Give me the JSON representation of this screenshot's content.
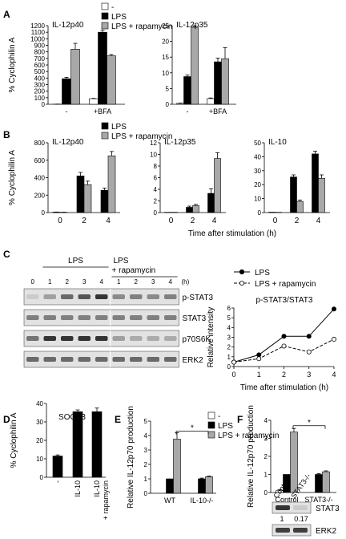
{
  "colors": {
    "ctrl": "#ffffff",
    "lps": "#000000",
    "rapa": "#a8a8a8"
  },
  "panel_labels": [
    "A",
    "B",
    "C",
    "D",
    "E",
    "F"
  ],
  "legend_labels": {
    "ctrl": "-",
    "lps": "LPS",
    "rapa": "LPS + rapamycin"
  },
  "chart_data": [
    {
      "panel": "A",
      "type": "bar",
      "title": "IL-12p40",
      "ylabel": "% Cyclophilin A",
      "ylim": [
        0,
        1200
      ],
      "yticks": [
        0,
        100,
        200,
        300,
        400,
        500,
        600,
        700,
        800,
        900,
        1000,
        1100,
        1200
      ],
      "group_labels": [
        "-",
        "+BFA"
      ],
      "series": [
        {
          "name": "-",
          "values": [
            2,
            85
          ]
        },
        {
          "name": "LPS",
          "values": [
            390,
            1100
          ]
        },
        {
          "name": "LPS + rapamycin",
          "values": [
            840,
            740
          ]
        }
      ],
      "errors": [
        [
          1,
          5
        ],
        [
          20,
          30
        ],
        [
          90,
          20
        ]
      ]
    },
    {
      "panel": "A",
      "type": "bar",
      "title": "IL-12p35",
      "ylabel": "",
      "ylim": [
        0,
        25
      ],
      "yticks": [
        0,
        5,
        10,
        15,
        20,
        25
      ],
      "group_labels": [
        "-",
        "+BFA"
      ],
      "series": [
        {
          "name": "-",
          "values": [
            0.3,
            1.8
          ]
        },
        {
          "name": "LPS",
          "values": [
            8.8,
            13.5
          ]
        },
        {
          "name": "LPS + rapamycin",
          "values": [
            24.5,
            14.5
          ]
        }
      ],
      "errors": [
        [
          0.1,
          0.2
        ],
        [
          0.5,
          1.2
        ],
        [
          0.5,
          3.5
        ]
      ]
    },
    {
      "panel": "B",
      "type": "bar",
      "title": "IL-12p40",
      "ylabel": "% Cyclophilin A",
      "ylim": [
        0,
        800
      ],
      "yticks": [
        0,
        200,
        400,
        600,
        800
      ],
      "xlabel": "Time after stimulation (h)",
      "x": [
        "0",
        "2",
        "4"
      ],
      "series": [
        {
          "name": "LPS",
          "values": [
            5,
            420,
            255
          ]
        },
        {
          "name": "LPS + rapamycin",
          "values": [
            3,
            320,
            650
          ]
        }
      ],
      "errors": [
        [
          1,
          40,
          25
        ],
        [
          1,
          40,
          50
        ]
      ]
    },
    {
      "panel": "B",
      "type": "bar",
      "title": "IL-12p35",
      "ylabel": "",
      "ylim": [
        0,
        12
      ],
      "yticks": [
        0,
        2,
        4,
        6,
        8,
        10,
        12
      ],
      "xlabel": "Time after stimulation (h)",
      "x": [
        "0",
        "2",
        "4"
      ],
      "series": [
        {
          "name": "LPS",
          "values": [
            0.05,
            0.9,
            3.3
          ]
        },
        {
          "name": "LPS + rapamycin",
          "values": [
            0.05,
            1.2,
            9.3
          ]
        }
      ],
      "errors": [
        [
          0,
          0.2,
          0.8
        ],
        [
          0,
          0.2,
          1.0
        ]
      ]
    },
    {
      "panel": "B",
      "type": "bar",
      "title": "IL-10",
      "ylabel": "",
      "ylim": [
        0,
        50
      ],
      "yticks": [
        0,
        10,
        20,
        30,
        40,
        50
      ],
      "xlabel": "Time after stimulation (h)",
      "x": [
        "0",
        "2",
        "4"
      ],
      "series": [
        {
          "name": "LPS",
          "values": [
            0.3,
            25.5,
            42
          ]
        },
        {
          "name": "LPS + rapamycin",
          "values": [
            0.2,
            8,
            24.5
          ]
        }
      ],
      "errors": [
        [
          0,
          1.5,
          2
        ],
        [
          0,
          1,
          2.5
        ]
      ]
    },
    {
      "panel": "C",
      "type": "line",
      "title": "p-STAT3/STAT3",
      "xlabel": "Time after stimulation (h)",
      "ylabel": "Relative intensity",
      "x": [
        0,
        1,
        2,
        3,
        4
      ],
      "xlim": [
        0,
        4
      ],
      "ylim": [
        0,
        6
      ],
      "yticks": [
        0,
        1,
        2,
        3,
        4,
        5,
        6
      ],
      "legend_position": "top-right",
      "series": [
        {
          "name": "LPS",
          "values": [
            0.45,
            1.2,
            3.1,
            3.1,
            5.9
          ]
        },
        {
          "name": "LPS + rapamycin",
          "values": [
            0.45,
            0.8,
            2.1,
            1.5,
            2.8
          ]
        }
      ]
    },
    {
      "panel": "D",
      "type": "bar",
      "title": "SOCS3",
      "ylabel": "% Cyclophilin A",
      "ylim": [
        0,
        40
      ],
      "yticks": [
        0,
        10,
        20,
        30,
        40
      ],
      "categories": [
        "-",
        "IL-10",
        "IL-10\n+ rapamycin"
      ],
      "values": [
        11.5,
        35.5,
        35.5
      ],
      "errors": [
        0.6,
        1.0,
        2.0
      ]
    },
    {
      "panel": "E",
      "type": "bar",
      "title": "",
      "ylabel": "Relative IL-12p70 production",
      "ylim": [
        0,
        5
      ],
      "yticks": [
        0,
        1,
        2,
        3,
        4,
        5
      ],
      "group_labels": [
        "WT",
        "IL-10-/-"
      ],
      "series": [
        {
          "name": "-",
          "values": [
            0,
            0
          ]
        },
        {
          "name": "LPS",
          "values": [
            1,
            1
          ]
        },
        {
          "name": "LPS + rapamycin",
          "values": [
            3.75,
            1.15
          ]
        }
      ],
      "errors": [
        [
          0,
          0
        ],
        [
          0,
          0.05
        ],
        [
          0.45,
          0.05
        ]
      ],
      "significance": "*"
    },
    {
      "panel": "F",
      "type": "bar",
      "title": "",
      "ylabel": "Relative IL-12p70 production",
      "ylim": [
        0,
        4
      ],
      "yticks": [
        0,
        1,
        2,
        3,
        4
      ],
      "group_labels": [
        "Control",
        "STAT3-/-"
      ],
      "series": [
        {
          "name": "-",
          "values": [
            0.1,
            0
          ]
        },
        {
          "name": "LPS",
          "values": [
            1,
            1
          ]
        },
        {
          "name": "LPS + rapamycin",
          "values": [
            3.35,
            1.15
          ]
        }
      ],
      "errors": [
        [
          0.05,
          0
        ],
        [
          0,
          0.05
        ],
        [
          0.2,
          0.05
        ]
      ],
      "significance": "*"
    }
  ],
  "blot_c": {
    "group_lps": "LPS",
    "group_rapa_1": "LPS",
    "group_rapa_2": "+ rapamycin",
    "unit": "(h)",
    "lanes": [
      "0",
      "1",
      "2",
      "3",
      "4",
      "1",
      "2",
      "3",
      "4"
    ],
    "bands": [
      "p-STAT3",
      "STAT3",
      "p70S6K",
      "ERK2"
    ],
    "intensity": {
      "p-STAT3": [
        0.15,
        0.35,
        0.6,
        0.7,
        0.85,
        0.45,
        0.5,
        0.45,
        0.5
      ],
      "STAT3": [
        0.5,
        0.5,
        0.5,
        0.5,
        0.5,
        0.5,
        0.5,
        0.5,
        0.5
      ],
      "p70S6K": [
        0.55,
        0.85,
        0.85,
        0.85,
        0.85,
        0.35,
        0.3,
        0.3,
        0.3
      ],
      "ERK2": [
        0.6,
        0.6,
        0.6,
        0.6,
        0.6,
        0.6,
        0.6,
        0.6,
        0.6
      ]
    }
  },
  "blot_f": {
    "lanes": [
      "Control",
      "STAT3-/-"
    ],
    "bands": [
      "STAT3",
      "ERK2"
    ],
    "quant": [
      "1",
      "0.17"
    ],
    "intensity": {
      "STAT3": [
        0.85,
        0.15
      ],
      "ERK2": [
        0.8,
        0.8
      ]
    }
  }
}
